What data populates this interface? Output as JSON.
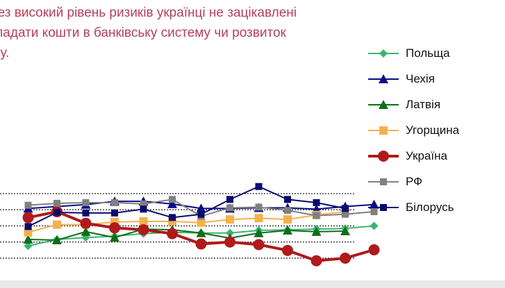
{
  "title_lines": [
    "рез високий рівень ризиків українці не зацікавлені",
    "падати кошти в банківську систему чи розвиток",
    "несу."
  ],
  "chart_data": {
    "type": "line",
    "title": "рез високий рівень ризиків українці не зацікавлені падати кошти в банківську систему чи розвиток несу.",
    "xlabel": "",
    "ylabel": "",
    "x": [
      1,
      2,
      3,
      4,
      5,
      6,
      7,
      8,
      9,
      10,
      11,
      12,
      13
    ],
    "ylim": [
      0,
      100
    ],
    "grid": "horizontal dotted",
    "legend": "right",
    "series": [
      {
        "name": "Польща",
        "color": "#3cb371",
        "marker": "diamond",
        "markerSize": 5,
        "lineWidth": 2,
        "values": [
          19,
          29,
          32,
          34,
          38,
          40,
          39,
          39,
          43,
          44,
          45,
          46,
          50
        ]
      },
      {
        "name": "Чехія",
        "color": "#0a0a8c",
        "marker": "triangle",
        "markerSize": 6,
        "lineWidth": 2,
        "values": [
          77,
          80,
          83,
          88,
          88,
          84,
          77,
          77,
          78,
          78,
          76,
          80,
          83
        ]
      },
      {
        "name": "Латвія",
        "color": "#0f6e1a",
        "marker": "triangle",
        "markerSize": 6,
        "lineWidth": 2,
        "values": [
          29,
          28,
          41,
          32,
          45,
          44,
          39,
          31,
          39,
          43,
          41,
          42,
          null
        ]
      },
      {
        "name": "Угорщина",
        "color": "#f5b04e",
        "marker": "square",
        "markerSize": 6,
        "lineWidth": 2,
        "values": [
          40,
          52,
          52,
          56,
          57,
          57,
          55,
          60,
          62,
          60,
          67,
          72,
          null
        ]
      },
      {
        "name": "Україна",
        "color": "#b01a1a",
        "marker": "circle",
        "markerSize": 8,
        "lineWidth": 4,
        "values": [
          63,
          72,
          54,
          47,
          44,
          38,
          22,
          25,
          21,
          12,
          -4,
          0,
          13
        ]
      },
      {
        "name": "РФ",
        "color": "#808080",
        "marker": "square",
        "markerSize": 5,
        "lineWidth": 2,
        "values": [
          82,
          85,
          86,
          86,
          84,
          91,
          65,
          78,
          79,
          74,
          66,
          68,
          72
        ]
      },
      {
        "name": "Білорусь",
        "color": "#0a0a6e",
        "marker": "square",
        "markerSize": 5,
        "lineWidth": 2,
        "values": [
          49,
          71,
          70,
          70,
          76,
          63,
          68,
          91,
          111,
          91,
          86,
          77,
          null
        ]
      }
    ]
  }
}
